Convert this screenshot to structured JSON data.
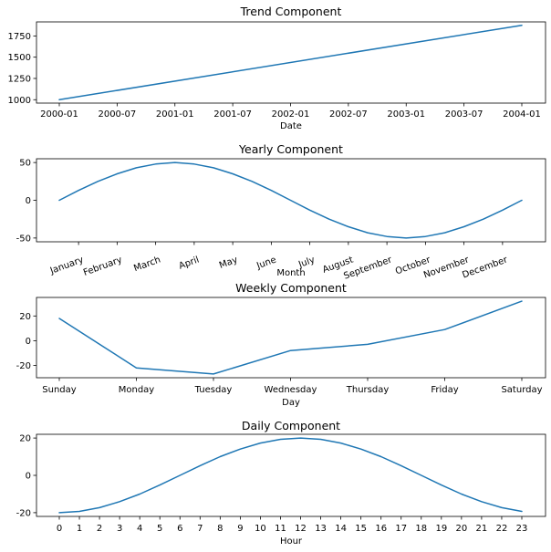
{
  "chart_data": [
    {
      "type": "line",
      "title": "Trend Component",
      "xlabel": "Date",
      "ylabel": "",
      "x": [
        "2000-01",
        "2004-01"
      ],
      "values": [
        1000,
        1875
      ],
      "xticks": [
        "2000-01",
        "2000-07",
        "2001-01",
        "2001-07",
        "2002-01",
        "2002-07",
        "2003-01",
        "2003-07",
        "2004-01"
      ],
      "yticks": [
        1000,
        1250,
        1500,
        1750
      ],
      "ylim": [
        960,
        1915
      ],
      "grid": false
    },
    {
      "type": "line",
      "title": "Yearly Component",
      "xlabel": "Month",
      "ylabel": "",
      "x": [
        0,
        0.5,
        1,
        1.5,
        2,
        2.5,
        3,
        3.5,
        4,
        4.5,
        5,
        5.5,
        6,
        6.5,
        7,
        7.5,
        8,
        8.5,
        9,
        9.5,
        10,
        10.5,
        11,
        11.5,
        12
      ],
      "values": [
        0,
        13,
        25,
        35,
        43,
        48,
        50,
        48,
        43,
        35,
        25,
        13,
        0,
        -13,
        -25,
        -35,
        -43,
        -48,
        -50,
        -48,
        -43,
        -35,
        -25,
        -13,
        0
      ],
      "xticks": [
        "January",
        "February",
        "March",
        "April",
        "May",
        "June",
        "July",
        "August",
        "September",
        "October",
        "November",
        "December"
      ],
      "yticks": [
        -50,
        0,
        50
      ],
      "ylim": [
        -55,
        55
      ],
      "grid": false
    },
    {
      "type": "line",
      "title": "Weekly Component",
      "xlabel": "Day",
      "ylabel": "",
      "categories": [
        "Sunday",
        "Monday",
        "Tuesday",
        "Wednesday",
        "Thursday",
        "Friday",
        "Saturday"
      ],
      "values": [
        18,
        -22,
        -27,
        -8,
        -3,
        9,
        32
      ],
      "yticks": [
        -20,
        0,
        20
      ],
      "ylim": [
        -30,
        35
      ],
      "grid": false
    },
    {
      "type": "line",
      "title": "Daily Component",
      "xlabel": "Hour",
      "ylabel": "",
      "categories": [
        "0",
        "1",
        "2",
        "3",
        "4",
        "5",
        "6",
        "7",
        "8",
        "9",
        "10",
        "11",
        "12",
        "13",
        "14",
        "15",
        "16",
        "17",
        "18",
        "19",
        "20",
        "21",
        "22",
        "23"
      ],
      "values": [
        -20,
        -19.3,
        -17.3,
        -14.1,
        -10,
        -5.2,
        0,
        5.2,
        10,
        14.1,
        17.3,
        19.3,
        20,
        19.3,
        17.3,
        14.1,
        10,
        5.2,
        0,
        -5.2,
        -10,
        -14.1,
        -17.3,
        -19.3
      ],
      "yticks": [
        -20,
        0,
        20
      ],
      "ylim": [
        -22,
        22
      ],
      "grid": false
    }
  ]
}
